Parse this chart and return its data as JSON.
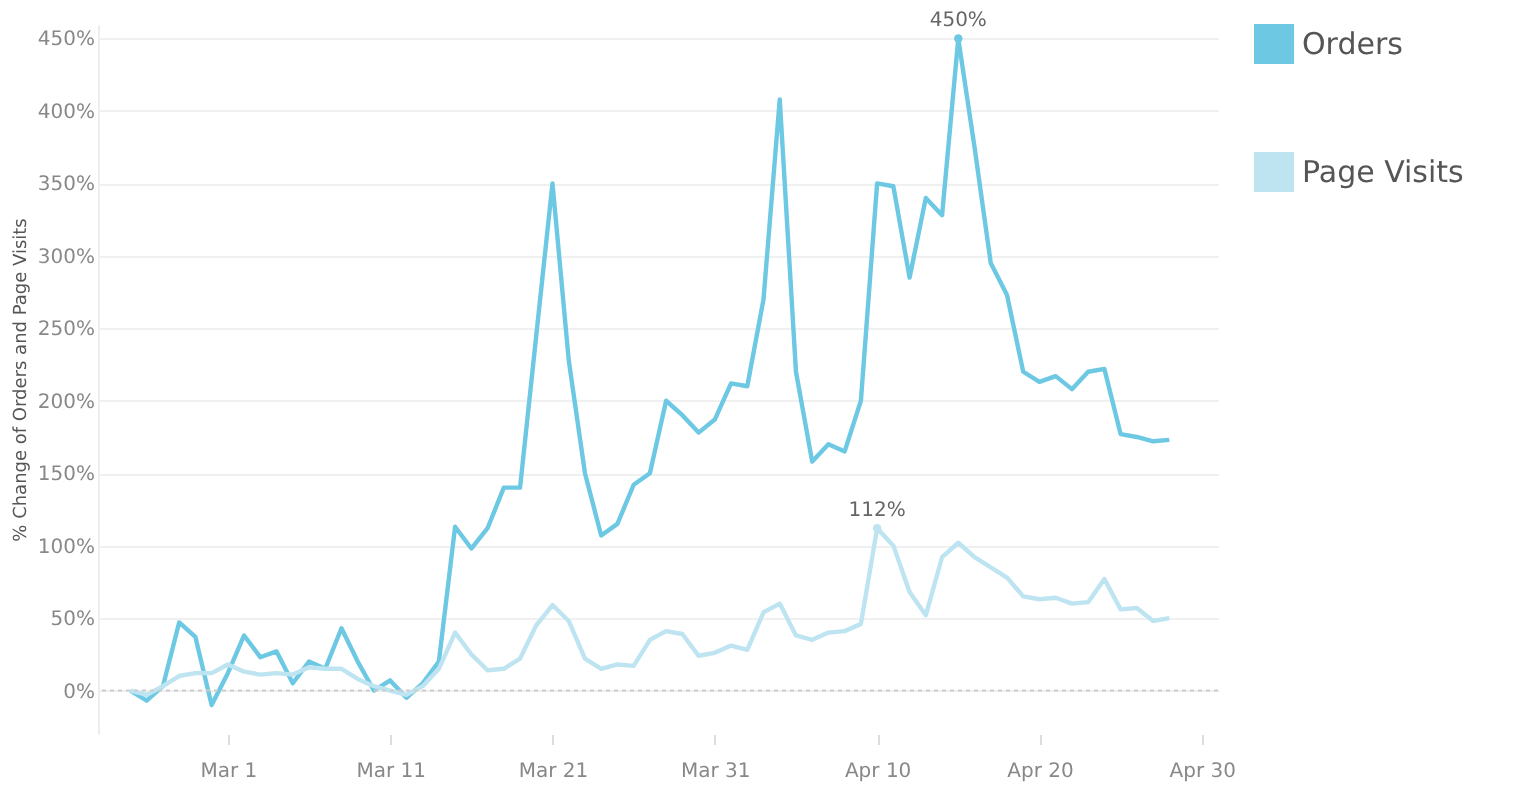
{
  "chart_data": {
    "type": "line",
    "ylabel": "% Change of Orders and Page Visits",
    "x": [
      "--02-24",
      "--02-25",
      "--02-26",
      "--02-27",
      "--02-28",
      "--02-29",
      "--03-01",
      "--03-02",
      "--03-03",
      "--03-04",
      "--03-05",
      "--03-06",
      "--03-07",
      "--03-08",
      "--03-09",
      "--03-10",
      "--03-11",
      "--03-12",
      "--03-13",
      "--03-14",
      "--03-15",
      "--03-16",
      "--03-17",
      "--03-18",
      "--03-19",
      "--03-20",
      "--03-21",
      "--03-22",
      "--03-23",
      "--03-24",
      "--03-25",
      "--03-26",
      "--03-27",
      "--03-28",
      "--03-29",
      "--03-30",
      "--03-31",
      "--04-01",
      "--04-02",
      "--04-03",
      "--04-04",
      "--04-05",
      "--04-06",
      "--04-07",
      "--04-08",
      "--04-09",
      "--04-10",
      "--04-11",
      "--04-12",
      "--04-13",
      "--04-14",
      "--04-15",
      "--04-16",
      "--04-17",
      "--04-18",
      "--04-19",
      "--04-20",
      "--04-21",
      "--04-22",
      "--04-23",
      "--04-24",
      "--04-25",
      "--04-26",
      "--04-27",
      "--04-28"
    ],
    "series": [
      {
        "name": "Orders",
        "color": "#6cc8e3",
        "values": [
          0,
          -7,
          3,
          47,
          37,
          -10,
          12,
          38,
          23,
          27,
          5,
          20,
          15,
          43,
          20,
          0,
          7,
          -5,
          5,
          20,
          113,
          98,
          112,
          140,
          140,
          245,
          350,
          228,
          150,
          107,
          115,
          142,
          150,
          200,
          190,
          178,
          187,
          212,
          210,
          270,
          408,
          220,
          158,
          170,
          165,
          200,
          350,
          348,
          285,
          340,
          328,
          450,
          375,
          295,
          273,
          220,
          213,
          217,
          208,
          220,
          222,
          177,
          175,
          172,
          173
        ]
      },
      {
        "name": "Page Visits",
        "color": "#bde4f0",
        "values": [
          0,
          -3,
          3,
          10,
          12,
          12,
          18,
          13,
          11,
          12,
          11,
          16,
          15,
          15,
          8,
          3,
          0,
          -3,
          3,
          15,
          40,
          25,
          14,
          15,
          22,
          45,
          59,
          48,
          22,
          15,
          18,
          17,
          35,
          41,
          39,
          24,
          26,
          31,
          28,
          54,
          60,
          38,
          35,
          40,
          41,
          46,
          112,
          100,
          68,
          52,
          92,
          102,
          92,
          85,
          78,
          65,
          63,
          64,
          60,
          61,
          77,
          56,
          57,
          48,
          50
        ]
      }
    ],
    "xlim": [
      "--02-22",
      "--05-01"
    ],
    "xticks": [
      {
        "value": "--03-01",
        "label": "Mar 1"
      },
      {
        "value": "--03-11",
        "label": "Mar 11"
      },
      {
        "value": "--03-21",
        "label": "Mar 21"
      },
      {
        "value": "--03-31",
        "label": "Mar 31"
      },
      {
        "value": "--04-10",
        "label": "Apr 10"
      },
      {
        "value": "--04-20",
        "label": "Apr 20"
      },
      {
        "value": "--04-30",
        "label": "Apr 30"
      }
    ],
    "ylim": [
      -30,
      460
    ],
    "ref_lines": [
      {
        "axis": "y",
        "value": 0,
        "color": "#cccccc",
        "line_style": "dotted"
      }
    ],
    "yticks": [
      {
        "value": 0,
        "label": "0%"
      },
      {
        "value": 50,
        "label": "50%"
      },
      {
        "value": 100,
        "label": "100%"
      },
      {
        "value": 150,
        "label": "150%"
      },
      {
        "value": 200,
        "label": "200%"
      },
      {
        "value": 250,
        "label": "250%"
      },
      {
        "value": 300,
        "label": "300%"
      },
      {
        "value": 350,
        "label": "350%"
      },
      {
        "value": 400,
        "label": "400%"
      },
      {
        "value": 450,
        "label": "450%"
      }
    ],
    "annotations": [
      {
        "text": "450%",
        "x": "--04-15",
        "y": 450
      },
      {
        "text": "112%",
        "x": "--04-10",
        "y": 112
      }
    ],
    "grid": "y",
    "legend": "top right",
    "marker": "none",
    "line_style": "solid"
  }
}
